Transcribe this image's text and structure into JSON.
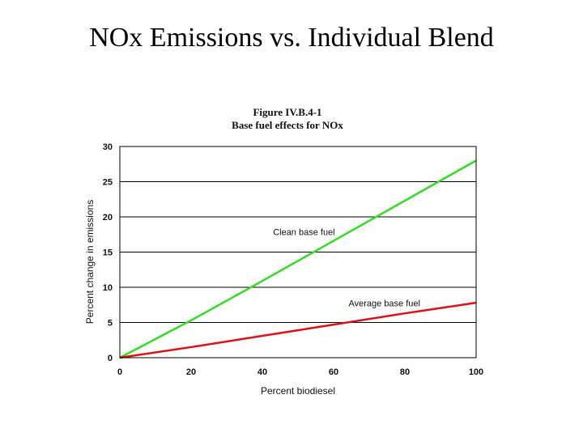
{
  "slide": {
    "title": "NOx Emissions vs. Individual Blend"
  },
  "chart_data": {
    "type": "line",
    "title": "Figure IV.B.4-1",
    "subtitle": "Base fuel effects for NOx",
    "xlabel": "Percent biodiesel",
    "ylabel": "Percent change in emissions",
    "xlim": [
      0,
      100
    ],
    "ylim": [
      0,
      30
    ],
    "xticks": [
      0,
      20,
      40,
      60,
      80,
      100
    ],
    "yticks": [
      0,
      5,
      10,
      15,
      20,
      25,
      30
    ],
    "grid": "horizontal",
    "legend": "inline labels",
    "series": [
      {
        "name": "Clean base fuel",
        "color": "#33dd22",
        "x": [
          0,
          20,
          40,
          60,
          80,
          100
        ],
        "y": [
          0,
          5.3,
          10.9,
          16.6,
          22.3,
          28.0
        ]
      },
      {
        "name": "Average base fuel",
        "color": "#e01010",
        "x": [
          0,
          20,
          40,
          60,
          80,
          100
        ],
        "y": [
          0,
          1.5,
          3.1,
          4.7,
          6.3,
          7.8
        ]
      }
    ]
  }
}
